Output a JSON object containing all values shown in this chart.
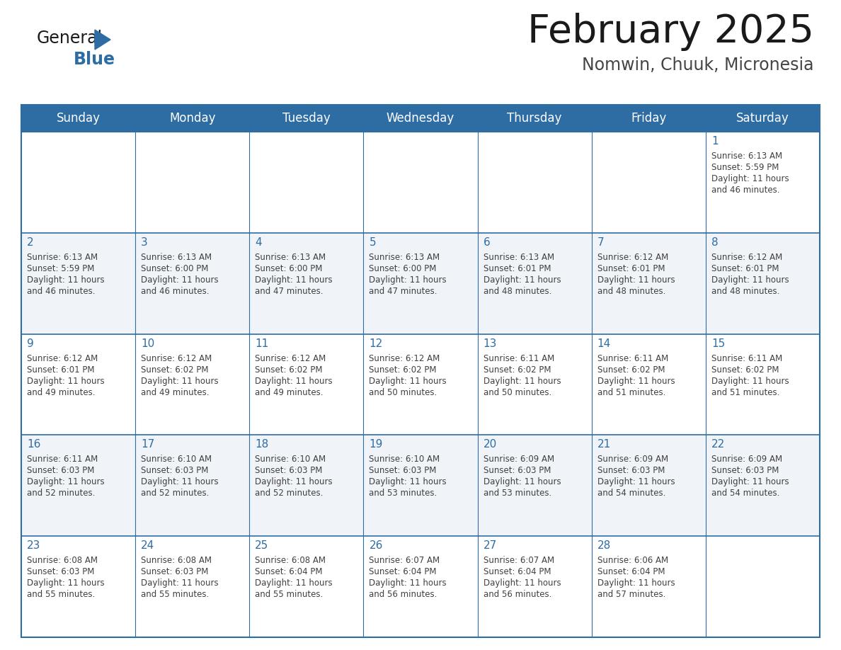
{
  "title": "February 2025",
  "subtitle": "Nomwin, Chuuk, Micronesia",
  "days_of_week": [
    "Sunday",
    "Monday",
    "Tuesday",
    "Wednesday",
    "Thursday",
    "Friday",
    "Saturday"
  ],
  "header_bg_color": "#2E6DA4",
  "header_text_color": "#FFFFFF",
  "cell_bg_even": "#FFFFFF",
  "cell_bg_odd": "#F0F4F8",
  "border_color": "#2E6DA4",
  "day_num_color": "#2E6DA4",
  "cell_text_color": "#404040",
  "title_color": "#1a1a1a",
  "subtitle_color": "#444444",
  "logo_general_color": "#1a1a1a",
  "logo_blue_color": "#2E6DA4",
  "fig_width": 11.88,
  "fig_height": 9.18,
  "dpi": 100,
  "calendar_data": [
    {
      "day": 1,
      "col": 6,
      "row": 0,
      "sunrise": "6:13 AM",
      "sunset": "5:59 PM",
      "daylight_h": "11 hours",
      "daylight_m": "46 minutes."
    },
    {
      "day": 2,
      "col": 0,
      "row": 1,
      "sunrise": "6:13 AM",
      "sunset": "5:59 PM",
      "daylight_h": "11 hours",
      "daylight_m": "46 minutes."
    },
    {
      "day": 3,
      "col": 1,
      "row": 1,
      "sunrise": "6:13 AM",
      "sunset": "6:00 PM",
      "daylight_h": "11 hours",
      "daylight_m": "46 minutes."
    },
    {
      "day": 4,
      "col": 2,
      "row": 1,
      "sunrise": "6:13 AM",
      "sunset": "6:00 PM",
      "daylight_h": "11 hours",
      "daylight_m": "47 minutes."
    },
    {
      "day": 5,
      "col": 3,
      "row": 1,
      "sunrise": "6:13 AM",
      "sunset": "6:00 PM",
      "daylight_h": "11 hours",
      "daylight_m": "47 minutes."
    },
    {
      "day": 6,
      "col": 4,
      "row": 1,
      "sunrise": "6:13 AM",
      "sunset": "6:01 PM",
      "daylight_h": "11 hours",
      "daylight_m": "48 minutes."
    },
    {
      "day": 7,
      "col": 5,
      "row": 1,
      "sunrise": "6:12 AM",
      "sunset": "6:01 PM",
      "daylight_h": "11 hours",
      "daylight_m": "48 minutes."
    },
    {
      "day": 8,
      "col": 6,
      "row": 1,
      "sunrise": "6:12 AM",
      "sunset": "6:01 PM",
      "daylight_h": "11 hours",
      "daylight_m": "48 minutes."
    },
    {
      "day": 9,
      "col": 0,
      "row": 2,
      "sunrise": "6:12 AM",
      "sunset": "6:01 PM",
      "daylight_h": "11 hours",
      "daylight_m": "49 minutes."
    },
    {
      "day": 10,
      "col": 1,
      "row": 2,
      "sunrise": "6:12 AM",
      "sunset": "6:02 PM",
      "daylight_h": "11 hours",
      "daylight_m": "49 minutes."
    },
    {
      "day": 11,
      "col": 2,
      "row": 2,
      "sunrise": "6:12 AM",
      "sunset": "6:02 PM",
      "daylight_h": "11 hours",
      "daylight_m": "49 minutes."
    },
    {
      "day": 12,
      "col": 3,
      "row": 2,
      "sunrise": "6:12 AM",
      "sunset": "6:02 PM",
      "daylight_h": "11 hours",
      "daylight_m": "50 minutes."
    },
    {
      "day": 13,
      "col": 4,
      "row": 2,
      "sunrise": "6:11 AM",
      "sunset": "6:02 PM",
      "daylight_h": "11 hours",
      "daylight_m": "50 minutes."
    },
    {
      "day": 14,
      "col": 5,
      "row": 2,
      "sunrise": "6:11 AM",
      "sunset": "6:02 PM",
      "daylight_h": "11 hours",
      "daylight_m": "51 minutes."
    },
    {
      "day": 15,
      "col": 6,
      "row": 2,
      "sunrise": "6:11 AM",
      "sunset": "6:02 PM",
      "daylight_h": "11 hours",
      "daylight_m": "51 minutes."
    },
    {
      "day": 16,
      "col": 0,
      "row": 3,
      "sunrise": "6:11 AM",
      "sunset": "6:03 PM",
      "daylight_h": "11 hours",
      "daylight_m": "52 minutes."
    },
    {
      "day": 17,
      "col": 1,
      "row": 3,
      "sunrise": "6:10 AM",
      "sunset": "6:03 PM",
      "daylight_h": "11 hours",
      "daylight_m": "52 minutes."
    },
    {
      "day": 18,
      "col": 2,
      "row": 3,
      "sunrise": "6:10 AM",
      "sunset": "6:03 PM",
      "daylight_h": "11 hours",
      "daylight_m": "52 minutes."
    },
    {
      "day": 19,
      "col": 3,
      "row": 3,
      "sunrise": "6:10 AM",
      "sunset": "6:03 PM",
      "daylight_h": "11 hours",
      "daylight_m": "53 minutes."
    },
    {
      "day": 20,
      "col": 4,
      "row": 3,
      "sunrise": "6:09 AM",
      "sunset": "6:03 PM",
      "daylight_h": "11 hours",
      "daylight_m": "53 minutes."
    },
    {
      "day": 21,
      "col": 5,
      "row": 3,
      "sunrise": "6:09 AM",
      "sunset": "6:03 PM",
      "daylight_h": "11 hours",
      "daylight_m": "54 minutes."
    },
    {
      "day": 22,
      "col": 6,
      "row": 3,
      "sunrise": "6:09 AM",
      "sunset": "6:03 PM",
      "daylight_h": "11 hours",
      "daylight_m": "54 minutes."
    },
    {
      "day": 23,
      "col": 0,
      "row": 4,
      "sunrise": "6:08 AM",
      "sunset": "6:03 PM",
      "daylight_h": "11 hours",
      "daylight_m": "55 minutes."
    },
    {
      "day": 24,
      "col": 1,
      "row": 4,
      "sunrise": "6:08 AM",
      "sunset": "6:03 PM",
      "daylight_h": "11 hours",
      "daylight_m": "55 minutes."
    },
    {
      "day": 25,
      "col": 2,
      "row": 4,
      "sunrise": "6:08 AM",
      "sunset": "6:04 PM",
      "daylight_h": "11 hours",
      "daylight_m": "55 minutes."
    },
    {
      "day": 26,
      "col": 3,
      "row": 4,
      "sunrise": "6:07 AM",
      "sunset": "6:04 PM",
      "daylight_h": "11 hours",
      "daylight_m": "56 minutes."
    },
    {
      "day": 27,
      "col": 4,
      "row": 4,
      "sunrise": "6:07 AM",
      "sunset": "6:04 PM",
      "daylight_h": "11 hours",
      "daylight_m": "56 minutes."
    },
    {
      "day": 28,
      "col": 5,
      "row": 4,
      "sunrise": "6:06 AM",
      "sunset": "6:04 PM",
      "daylight_h": "11 hours",
      "daylight_m": "57 minutes."
    }
  ]
}
